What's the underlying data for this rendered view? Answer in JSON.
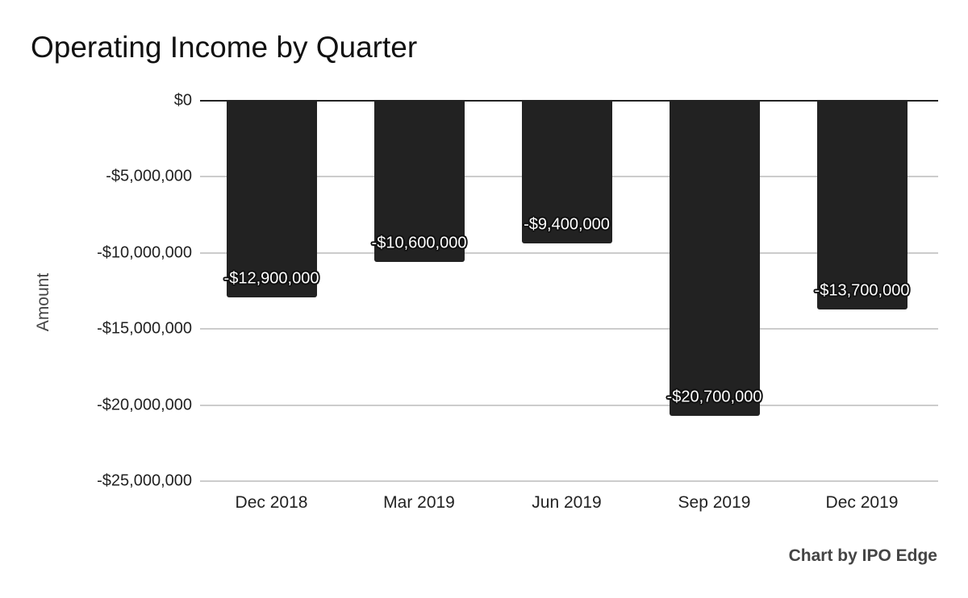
{
  "chart_data": {
    "type": "bar",
    "title": "Operating Income by Quarter",
    "xlabel": "",
    "ylabel": "Amount",
    "categories": [
      "Dec 2018",
      "Mar 2019",
      "Jun 2019",
      "Sep 2019",
      "Dec 2019"
    ],
    "values": [
      -12900000,
      -10600000,
      -9400000,
      -20700000,
      -13700000
    ],
    "data_labels": [
      "-$12,900,000",
      "-$10,600,000",
      "-$9,400,000",
      "-$20,700,000",
      "-$13,700,000"
    ],
    "ylim": [
      -25000000,
      0
    ],
    "yticks": [
      0,
      -5000000,
      -10000000,
      -15000000,
      -20000000,
      -25000000
    ],
    "ytick_labels": [
      "$0",
      "-$5,000,000",
      "-$10,000,000",
      "-$15,000,000",
      "-$20,000,000",
      "-$25,000,000"
    ],
    "grid": true,
    "legend": "none",
    "bar_color": "#222222"
  },
  "credit": "Chart by IPO Edge"
}
